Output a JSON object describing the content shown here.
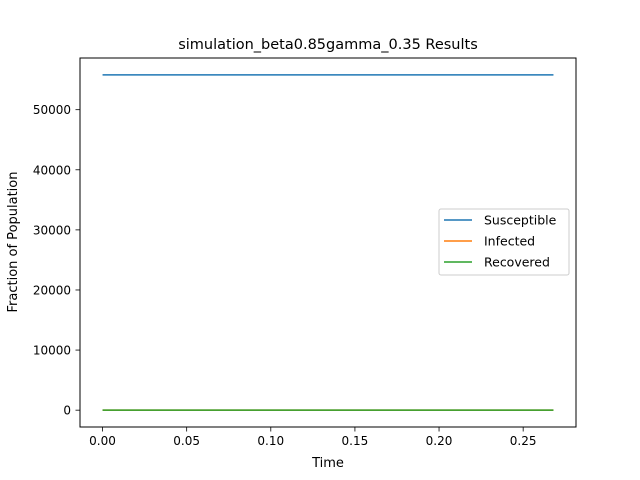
{
  "chart_data": {
    "type": "line",
    "title": "simulation_beta0.85gamma_0.35 Results",
    "xlabel": "Time",
    "ylabel": "Fraction of Population",
    "xlim": [
      -0.0134,
      0.2814
    ],
    "ylim": [
      -2800,
      58600
    ],
    "x_ticks": [
      0.0,
      0.05,
      0.1,
      0.15,
      0.2,
      0.25
    ],
    "x_tick_labels": [
      "0.00",
      "0.05",
      "0.10",
      "0.15",
      "0.20",
      "0.25"
    ],
    "y_ticks": [
      0,
      10000,
      20000,
      30000,
      40000,
      50000
    ],
    "y_tick_labels": [
      "0",
      "10000",
      "20000",
      "30000",
      "40000",
      "50000"
    ],
    "grid": false,
    "legend_position": "center-right",
    "x": [
      0.0,
      0.268
    ],
    "series": [
      {
        "name": "Susceptible",
        "color": "#1f77b4",
        "values": [
          55800,
          55800
        ]
      },
      {
        "name": "Infected",
        "color": "#ff7f0e",
        "values": [
          0,
          0
        ]
      },
      {
        "name": "Recovered",
        "color": "#2ca02c",
        "values": [
          0,
          0
        ]
      }
    ]
  }
}
